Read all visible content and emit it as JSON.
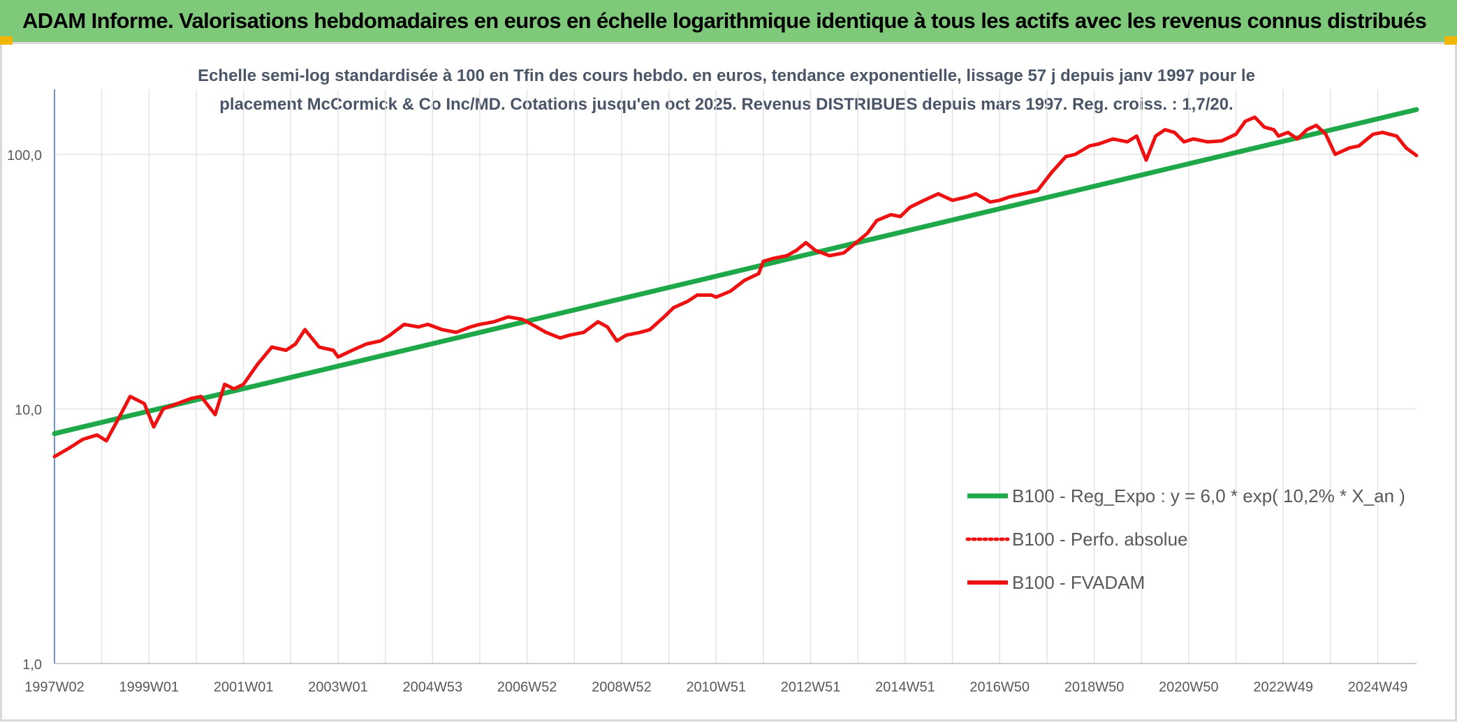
{
  "header": {
    "title": "ADAM Informe. Valorisations hebdomadaires en euros en échelle logarithmique identique à tous les actifs avec les revenus connus distribués"
  },
  "colors": {
    "banner": "#7ec97a",
    "regression": "#1fa84a",
    "fvadam": "#ee1111",
    "perfo": "#ee1111",
    "corner_accent": "#f2b705"
  },
  "chart_data": {
    "type": "line",
    "title_line1": "Echelle semi-log standardisée à 100 en Tfin des cours hebdo. en euros, tendance exponentielle, lissage 57 j depuis janv 1997 pour le",
    "title_line2": "placement McCormick & Co Inc/MD. Cotations jusqu'en oct 2025. Revenus DISTRIBUES depuis mars 1997. Reg. croiss. : 1,7/20.",
    "y_scale": "log",
    "ylim": [
      1,
      180
    ],
    "y_ticks": [
      {
        "value": 1,
        "label": "1,0"
      },
      {
        "value": 10,
        "label": "10,0"
      },
      {
        "value": 100,
        "label": "100,0"
      }
    ],
    "xlim": [
      1997.0,
      2025.82
    ],
    "x_tick_labels": [
      {
        "label": "1997W02",
        "value": 1997.0
      },
      {
        "label": "1999W01",
        "value": 1999.0
      },
      {
        "label": "2001W01",
        "value": 2001.0
      },
      {
        "label": "2003W01",
        "value": 2003.0
      },
      {
        "label": "2004W53",
        "value": 2005.0
      },
      {
        "label": "2006W52",
        "value": 2007.0
      },
      {
        "label": "2008W52",
        "value": 2009.0
      },
      {
        "label": "2010W51",
        "value": 2011.0
      },
      {
        "label": "2012W51",
        "value": 2013.0
      },
      {
        "label": "2014W51",
        "value": 2015.0
      },
      {
        "label": "2016W50",
        "value": 2017.0
      },
      {
        "label": "2018W50",
        "value": 2019.0
      },
      {
        "label": "2020W50",
        "value": 2021.0
      },
      {
        "label": "2022W49",
        "value": 2023.0
      },
      {
        "label": "2024W49",
        "value": 2025.0
      }
    ],
    "x_gridlines": [
      1997.0,
      1998.0,
      1999.0,
      2000.0,
      2001.0,
      2002.0,
      2003.0,
      2004.0,
      2005.0,
      2006.0,
      2007.0,
      2008.0,
      2009.0,
      2010.0,
      2011.0,
      2012.0,
      2013.0,
      2014.0,
      2015.0,
      2016.0,
      2017.0,
      2018.0,
      2019.0,
      2020.0,
      2021.0,
      2022.0,
      2023.0,
      2024.0,
      2025.0
    ],
    "legend_position": "bottom-right",
    "series": [
      {
        "name": "B100 - Reg_Expo : y = 6,0 * exp( 10,2% *  X_an )",
        "style": "solid-thick",
        "color": "#1fa84a",
        "x": [
          1997.0,
          2025.82
        ],
        "values": [
          8.0,
          150.0
        ]
      },
      {
        "name": "B100 - Perfo. absolue",
        "style": "dotted",
        "color": "#ee1111",
        "x": [],
        "values": []
      },
      {
        "name": "B100 - FVADAM",
        "style": "solid",
        "color": "#ee1111",
        "x": [
          1997.0,
          1997.3,
          1997.6,
          1997.9,
          1998.1,
          1998.4,
          1998.6,
          1998.9,
          1999.1,
          1999.3,
          1999.6,
          1999.9,
          2000.1,
          2000.4,
          2000.6,
          2000.8,
          2001.0,
          2001.3,
          2001.6,
          2001.9,
          2002.1,
          2002.3,
          2002.6,
          2002.9,
          2003.0,
          2003.3,
          2003.6,
          2003.9,
          2004.1,
          2004.4,
          2004.7,
          2004.9,
          2005.2,
          2005.5,
          2005.8,
          2006.0,
          2006.3,
          2006.6,
          2006.9,
          2007.1,
          2007.4,
          2007.7,
          2007.9,
          2008.2,
          2008.5,
          2008.7,
          2008.9,
          2009.1,
          2009.4,
          2009.6,
          2009.9,
          2010.1,
          2010.4,
          2010.6,
          2010.9,
          2011.0,
          2011.3,
          2011.6,
          2011.9,
          2012.0,
          2012.2,
          2012.5,
          2012.7,
          2012.9,
          2013.1,
          2013.4,
          2013.7,
          2013.9,
          2014.2,
          2014.4,
          2014.7,
          2014.9,
          2015.1,
          2015.4,
          2015.7,
          2016.0,
          2016.3,
          2016.5,
          2016.8,
          2017.0,
          2017.2,
          2017.5,
          2017.8,
          2018.1,
          2018.4,
          2018.6,
          2018.9,
          2019.1,
          2019.4,
          2019.7,
          2019.9,
          2020.1,
          2020.3,
          2020.5,
          2020.7,
          2020.9,
          2021.1,
          2021.4,
          2021.7,
          2022.0,
          2022.2,
          2022.4,
          2022.6,
          2022.8,
          2022.9,
          2023.1,
          2023.3,
          2023.5,
          2023.7,
          2023.9,
          2024.1,
          2024.4,
          2024.6,
          2024.9,
          2025.1,
          2025.4,
          2025.6,
          2025.82
        ],
        "values": [
          6.5,
          7.0,
          7.6,
          7.9,
          7.5,
          9.5,
          11.2,
          10.5,
          8.5,
          10.0,
          10.5,
          11.0,
          11.2,
          9.5,
          12.5,
          12.0,
          12.5,
          15.0,
          17.5,
          17.0,
          18.0,
          20.5,
          17.5,
          17.0,
          16.0,
          17.0,
          18.0,
          18.5,
          19.5,
          21.5,
          21.0,
          21.5,
          20.5,
          20.0,
          21.0,
          21.5,
          22.0,
          23.0,
          22.5,
          21.5,
          20.0,
          19.0,
          19.5,
          20.0,
          22.0,
          21.0,
          18.5,
          19.5,
          20.0,
          20.5,
          23.0,
          25.0,
          26.5,
          28.0,
          28.0,
          27.5,
          29.0,
          32.0,
          34.0,
          38.0,
          39.0,
          40.0,
          42.0,
          45.0,
          42.0,
          40.0,
          41.0,
          44.0,
          49.0,
          55.0,
          58.0,
          57.0,
          62.0,
          66.0,
          70.0,
          66.0,
          68.0,
          70.0,
          65.0,
          66.0,
          68.0,
          70.0,
          72.0,
          85.0,
          98.0,
          100.0,
          108.0,
          110.0,
          115.0,
          112.0,
          118.0,
          95.0,
          118.0,
          125.0,
          122.0,
          112.0,
          115.0,
          112.0,
          113.0,
          120.0,
          135.0,
          140.0,
          128.0,
          125.0,
          118.0,
          122.0,
          115.0,
          125.0,
          130.0,
          120.0,
          100.0,
          106.0,
          108.0,
          120.0,
          122.0,
          118.0,
          106.0,
          99.0
        ]
      }
    ]
  }
}
